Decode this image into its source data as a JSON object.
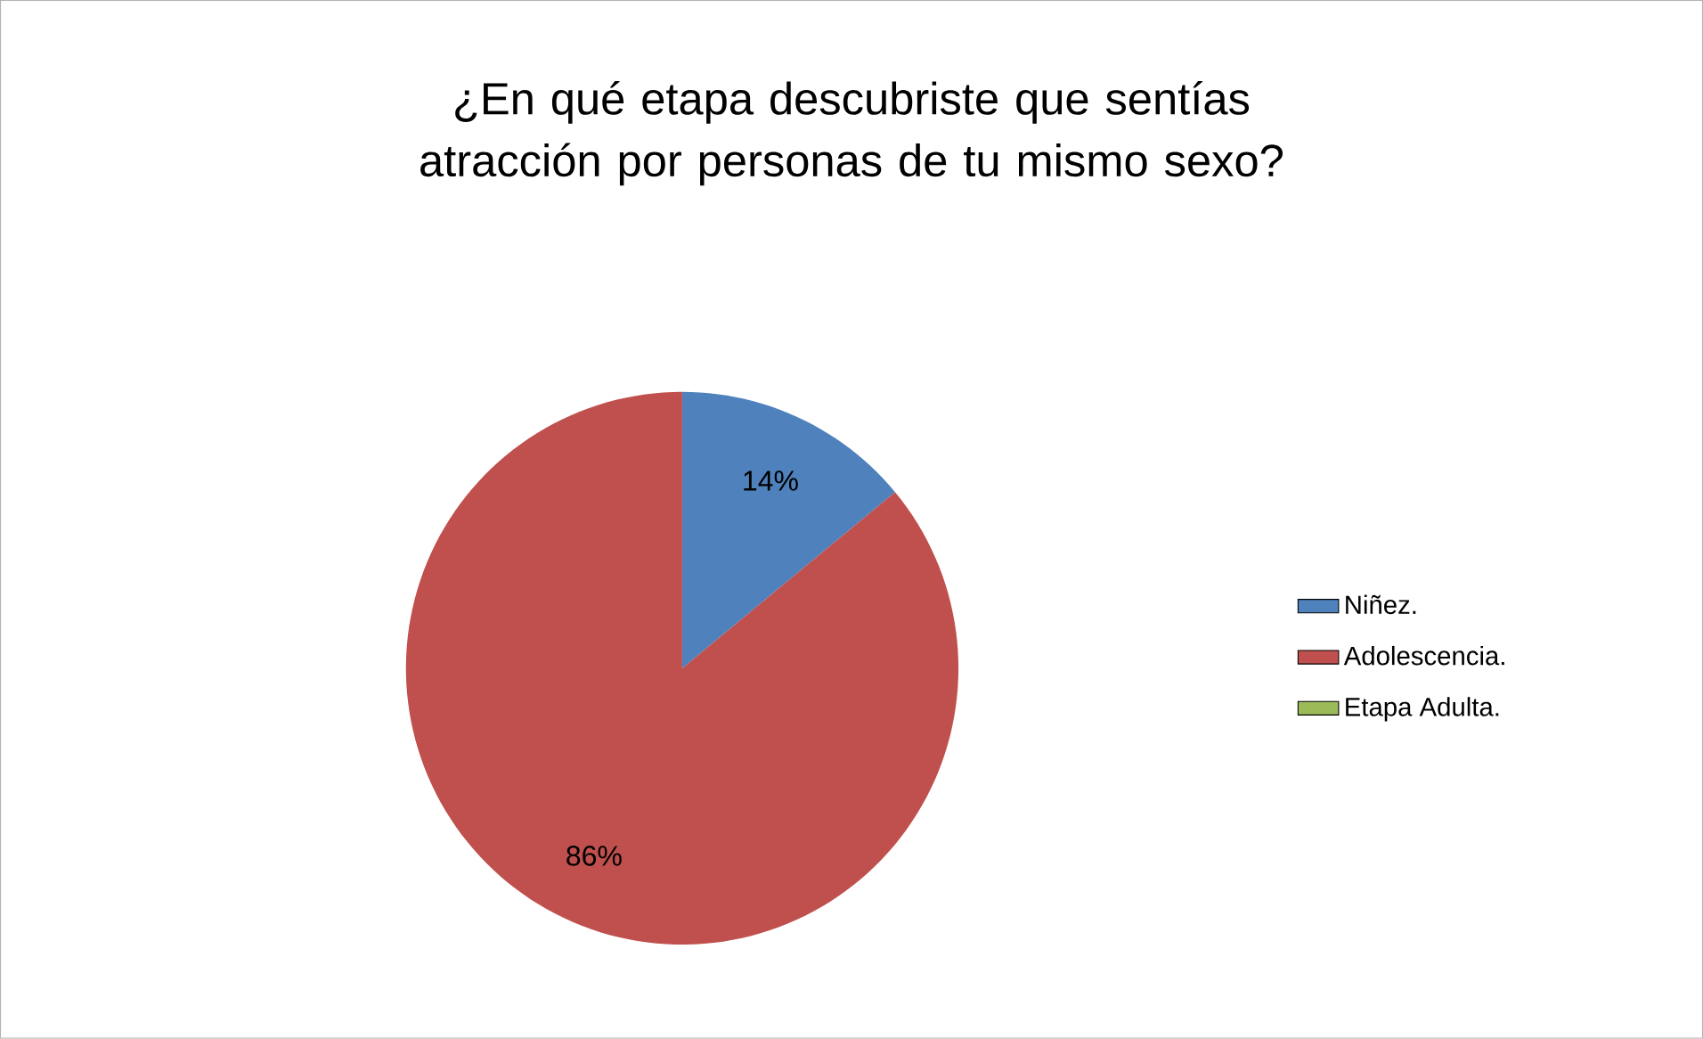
{
  "chart_data": {
    "type": "pie",
    "title": "¿En qué etapa descubriste que sentías atracción por personas de tu mismo sexo?",
    "categories": [
      "Niñez.",
      "Adolescencia.",
      "Etapa Adulta."
    ],
    "values": [
      14,
      86,
      0
    ],
    "colors": [
      "#4f81bd",
      "#c0504d",
      "#9bbb59"
    ],
    "value_labels": [
      "14%",
      "86%",
      null
    ],
    "legend": "right"
  }
}
